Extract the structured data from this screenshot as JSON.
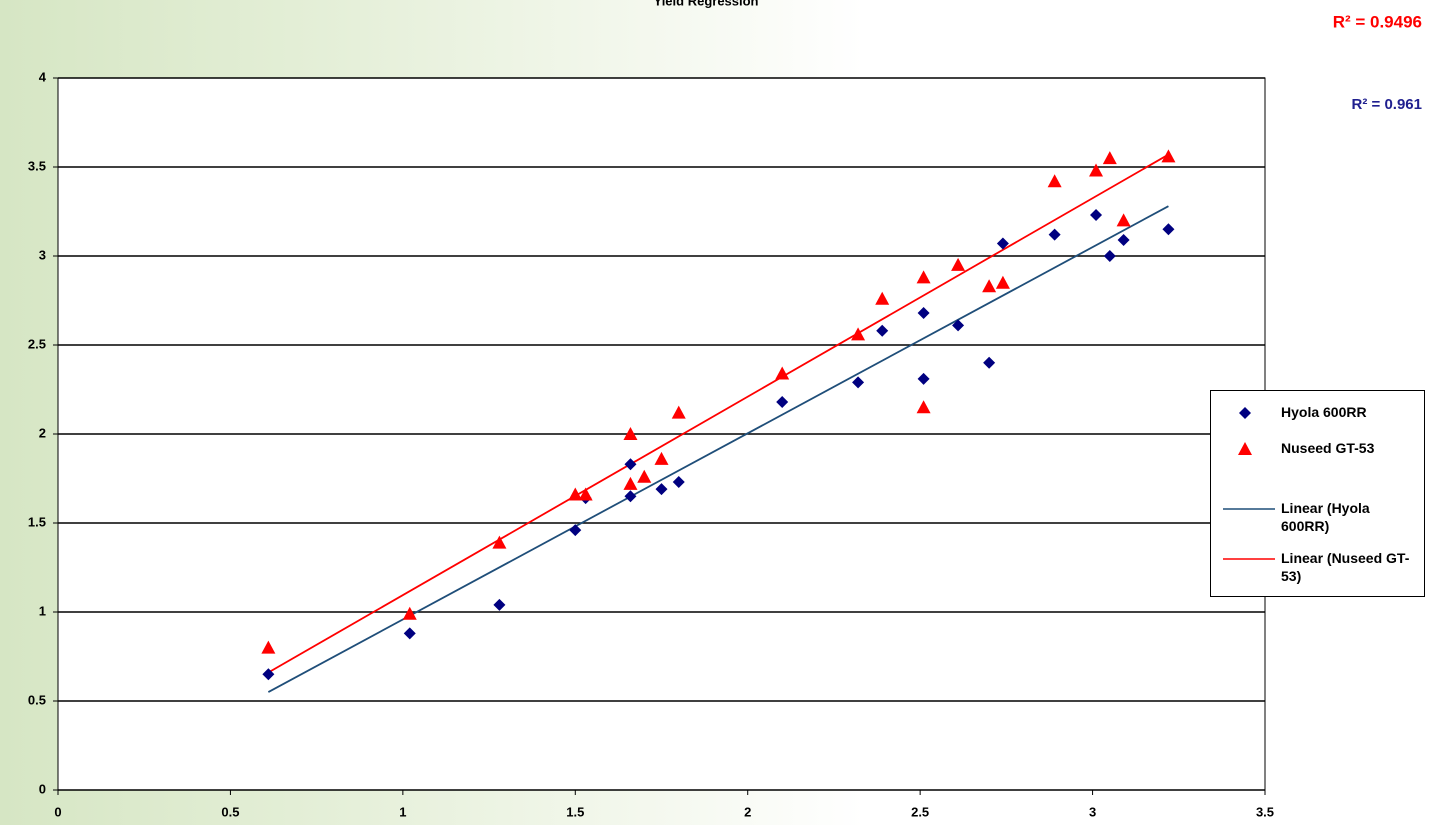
{
  "chart_data": {
    "type": "scatter",
    "title": "Yield Regression",
    "annotations": [
      {
        "text": "R² = 0.9496",
        "color": "#ff0000"
      },
      {
        "text": "R² = 0.961",
        "color": "#1f1f8f"
      }
    ],
    "xlim": [
      0,
      3.5
    ],
    "xticks": [
      0,
      0.5,
      1,
      1.5,
      2,
      2.5,
      3,
      3.5
    ],
    "ylim": [
      0,
      4
    ],
    "yticks": [
      0,
      0.5,
      1,
      1.5,
      2,
      2.5,
      3,
      3.5,
      4
    ],
    "grid": true,
    "legend": "right",
    "series": [
      {
        "name": "Hyola 600RR",
        "color": "#000080",
        "marker": "diamond",
        "x": [
          0.61,
          1.02,
          1.28,
          1.5,
          1.53,
          1.66,
          1.66,
          1.75,
          1.8,
          2.1,
          2.32,
          2.39,
          2.51,
          2.51,
          2.61,
          2.7,
          2.74,
          2.89,
          3.01,
          3.05,
          3.09,
          3.22
        ],
        "values": [
          0.65,
          0.88,
          1.04,
          1.46,
          1.64,
          1.83,
          1.65,
          1.69,
          1.73,
          2.18,
          2.29,
          2.58,
          2.68,
          2.31,
          2.61,
          2.4,
          3.07,
          3.12,
          3.23,
          3.0,
          3.09,
          3.15
        ],
        "trendline": {
          "name": "Linear (Hyola 600RR)",
          "color": "#1f4e79",
          "x": [
            0.61,
            3.22
          ],
          "values": [
            0.55,
            3.28
          ]
        }
      },
      {
        "name": "Nuseed GT-53",
        "color": "#ff0000",
        "marker": "triangle",
        "x": [
          0.61,
          1.02,
          1.28,
          1.5,
          1.53,
          1.66,
          1.66,
          1.7,
          1.75,
          1.8,
          2.1,
          2.32,
          2.39,
          2.51,
          2.51,
          2.61,
          2.7,
          2.74,
          2.89,
          3.01,
          3.05,
          3.09,
          3.22
        ],
        "values": [
          0.8,
          0.99,
          1.39,
          1.66,
          1.66,
          2.0,
          1.72,
          1.76,
          1.86,
          2.12,
          2.34,
          2.56,
          2.76,
          2.88,
          2.15,
          2.95,
          2.83,
          2.85,
          3.42,
          3.48,
          3.55,
          3.2,
          3.56
        ],
        "trendline": {
          "name": "Linear (Nuseed GT-53)",
          "color": "#ff0000",
          "x": [
            0.61,
            3.22
          ],
          "values": [
            0.66,
            3.57
          ]
        }
      }
    ]
  }
}
